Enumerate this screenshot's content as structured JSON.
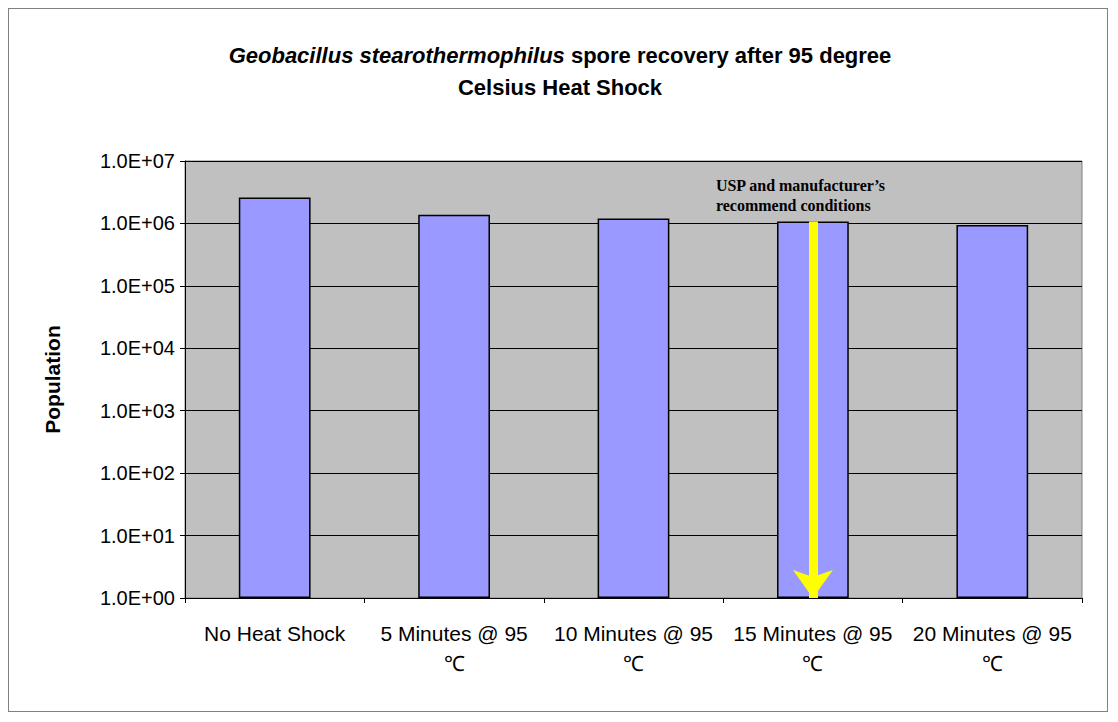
{
  "chart_data": {
    "type": "bar",
    "title": "Geobacillus stearothermophilus spore recovery after 95 degree Celsius Heat Shock",
    "y_label": "Population",
    "categories": [
      "No Heat Shock",
      "5 Minutes @ 95℃",
      "10 Minutes @ 95℃",
      "15 Minutes @ 95℃",
      "20 Minutes @ 95℃"
    ],
    "values": [
      2600000,
      1380000,
      1200000,
      1070000,
      940000
    ],
    "color": "#9999ff",
    "log": "y",
    "ylim": [
      1,
      10000000
    ],
    "yticks": [
      {
        "value": 1,
        "label": "1.0E+00"
      },
      {
        "value": 10,
        "label": "1.0E+01"
      },
      {
        "value": 100,
        "label": "1.0E+02"
      },
      {
        "value": 1000,
        "label": "1.0E+03"
      },
      {
        "value": 10000,
        "label": "1.0E+04"
      },
      {
        "value": 100000,
        "label": "1.0E+05"
      },
      {
        "value": 1000000,
        "label": "1.0E+06"
      },
      {
        "value": 10000000,
        "label": "1.0E+07"
      }
    ],
    "grid": true,
    "annotations": [
      {
        "text": "USP and manufacturer’s\nrecommend conditions",
        "category": "15 Minutes @ 95℃"
      }
    ]
  }
}
